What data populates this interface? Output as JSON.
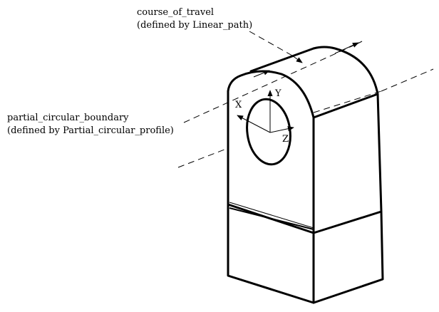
{
  "labels": {
    "travel_name": "course_of_travel",
    "travel_def": "(defined by Linear_path)",
    "boundary_name": "partial_circular_boundary",
    "boundary_def": "(defined by Partial_circular_profile)"
  },
  "axes": {
    "x": "X",
    "y": "Y",
    "z": "Z"
  },
  "colors": {
    "ink": "#000000",
    "background": "#ffffff"
  }
}
